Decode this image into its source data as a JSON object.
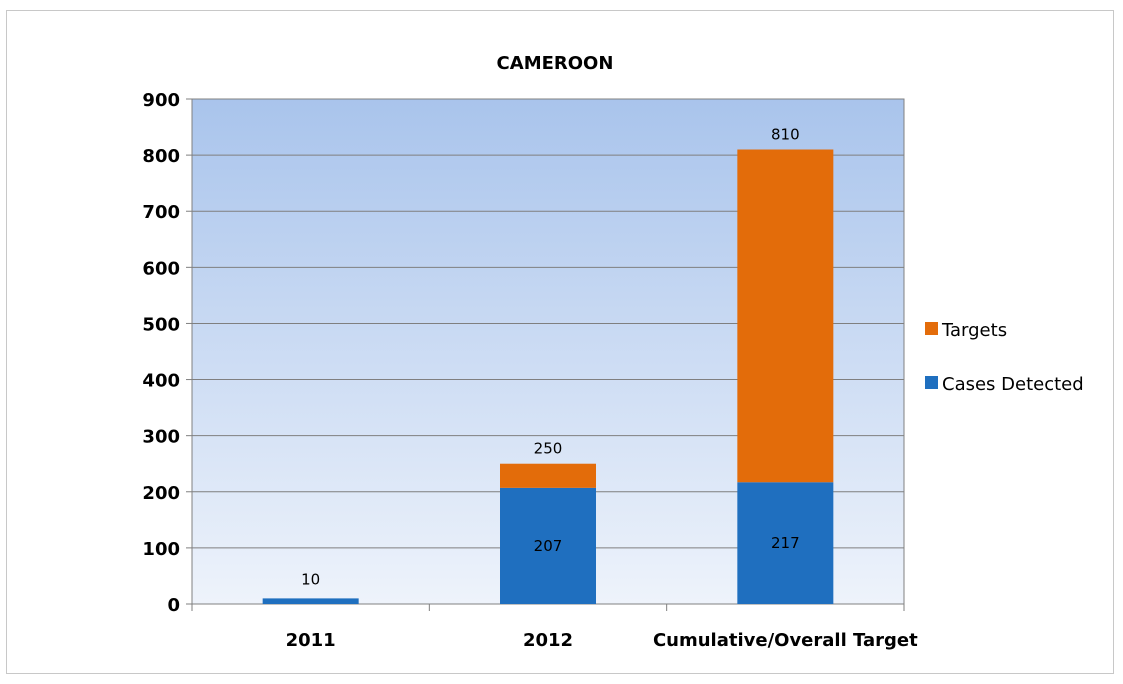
{
  "chart_data": {
    "type": "bar",
    "stacked": true,
    "title": "CAMEROON",
    "categories": [
      "2011",
      "2012",
      "Cumulative/Overall Target"
    ],
    "series": [
      {
        "name": "Cases Detected",
        "color": "#1f6fbf",
        "values": [
          10,
          207,
          217
        ]
      },
      {
        "name": "Targets",
        "color": "#e36c0a",
        "values": [
          0,
          43,
          593
        ]
      }
    ],
    "data_labels": [
      "10",
      "250",
      "207",
      "810",
      "217"
    ],
    "totals": [
      10,
      250,
      810
    ],
    "ylim": [
      0,
      900
    ],
    "yticks": [
      0,
      100,
      200,
      300,
      400,
      500,
      600,
      700,
      800,
      900
    ],
    "xlabel": "",
    "ylabel": "",
    "grid": true,
    "legend_position": "right",
    "legend_order": [
      "Targets",
      "Cases Detected"
    ]
  }
}
